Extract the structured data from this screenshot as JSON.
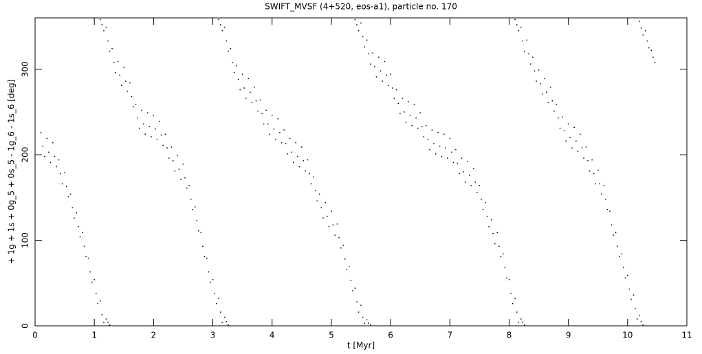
{
  "chart_data": {
    "type": "scatter",
    "title": "SWIFT_MVSF (4+520, eos-a1), particle no. 170",
    "xlabel": "t [Myr]",
    "ylabel": "+ 1g + 1s + 0g_5 + 0s_5 - 1g_6 - 1s_6 [deg]",
    "color": "#000000",
    "xlim": [
      0,
      11
    ],
    "ylim": [
      0,
      360
    ],
    "xticks": [
      0,
      1,
      2,
      3,
      4,
      5,
      6,
      7,
      8,
      9,
      10,
      11
    ],
    "yticks": [
      0,
      100,
      200,
      300
    ],
    "x": [
      0.1,
      0.13,
      0.16,
      0.2,
      0.23,
      0.26,
      0.3,
      0.33,
      0.36,
      0.4,
      0.43,
      0.46,
      0.5,
      0.53,
      0.56,
      0.6,
      0.63,
      0.66,
      0.7,
      0.73,
      0.76,
      0.8,
      0.83,
      0.86,
      0.9,
      0.93,
      0.96,
      1.0,
      1.03,
      1.06,
      1.1,
      1.13,
      1.16,
      1.2,
      1.23,
      1.26,
      1.1,
      1.13,
      1.16,
      1.2,
      1.23,
      1.26,
      1.3,
      1.33,
      1.36,
      1.4,
      1.43,
      1.46,
      1.5,
      1.53,
      1.56,
      1.6,
      1.63,
      1.66,
      1.7,
      1.73,
      1.76,
      1.8,
      1.83,
      1.86,
      1.9,
      1.93,
      1.96,
      2.0,
      2.03,
      2.06,
      2.1,
      2.13,
      2.16,
      2.2,
      2.23,
      2.26,
      2.3,
      2.33,
      2.36,
      2.4,
      2.43,
      2.46,
      2.5,
      2.53,
      2.56,
      2.6,
      2.63,
      2.66,
      2.7,
      2.73,
      2.76,
      2.8,
      2.83,
      2.86,
      2.9,
      2.93,
      2.96,
      3.0,
      3.03,
      3.06,
      3.1,
      3.13,
      3.16,
      3.2,
      3.23,
      3.26,
      3.1,
      3.13,
      3.16,
      3.2,
      3.23,
      3.26,
      3.3,
      3.33,
      3.36,
      3.4,
      3.43,
      3.46,
      3.5,
      3.53,
      3.56,
      3.6,
      3.63,
      3.66,
      3.7,
      3.73,
      3.76,
      3.8,
      3.83,
      3.86,
      3.9,
      3.93,
      3.96,
      4.0,
      4.03,
      4.06,
      4.1,
      4.13,
      4.16,
      4.2,
      4.23,
      4.26,
      4.3,
      4.33,
      4.36,
      4.4,
      4.43,
      4.46,
      4.5,
      4.53,
      4.56,
      4.6,
      4.63,
      4.66,
      4.7,
      4.73,
      4.76,
      4.8,
      4.83,
      4.86,
      4.9,
      4.93,
      4.96,
      5.0,
      5.03,
      5.06,
      5.1,
      5.13,
      5.16,
      5.2,
      5.23,
      5.26,
      5.3,
      5.33,
      5.36,
      5.4,
      5.43,
      5.46,
      5.5,
      5.53,
      5.56,
      5.6,
      5.63,
      5.66,
      5.4,
      5.43,
      5.46,
      5.5,
      5.53,
      5.56,
      5.6,
      5.63,
      5.66,
      5.7,
      5.73,
      5.76,
      5.8,
      5.83,
      5.86,
      5.9,
      5.93,
      5.96,
      6.0,
      6.03,
      6.06,
      6.1,
      6.13,
      6.16,
      6.2,
      6.23,
      6.26,
      6.3,
      6.33,
      6.36,
      6.4,
      6.43,
      6.46,
      6.5,
      6.53,
      6.56,
      6.6,
      6.63,
      6.66,
      6.7,
      6.73,
      6.76,
      6.8,
      6.83,
      6.86,
      6.9,
      6.93,
      6.96,
      7.0,
      7.03,
      7.06,
      7.1,
      7.13,
      7.16,
      7.2,
      7.23,
      7.26,
      7.3,
      7.33,
      7.36,
      7.4,
      7.43,
      7.46,
      7.5,
      7.53,
      7.56,
      7.6,
      7.63,
      7.66,
      7.7,
      7.73,
      7.76,
      7.8,
      7.83,
      7.86,
      7.9,
      7.93,
      7.96,
      8.0,
      8.03,
      8.06,
      8.1,
      8.13,
      8.16,
      8.2,
      8.23,
      8.26,
      8.1,
      8.13,
      8.16,
      8.2,
      8.23,
      8.26,
      8.3,
      8.33,
      8.36,
      8.4,
      8.43,
      8.46,
      8.5,
      8.53,
      8.56,
      8.6,
      8.63,
      8.66,
      8.7,
      8.73,
      8.76,
      8.8,
      8.83,
      8.86,
      8.9,
      8.93,
      8.96,
      9.0,
      9.03,
      9.06,
      9.1,
      9.13,
      9.16,
      9.2,
      9.23,
      9.26,
      9.3,
      9.33,
      9.36,
      9.4,
      9.43,
      9.46,
      9.5,
      9.53,
      9.56,
      9.6,
      9.63,
      9.66,
      9.7,
      9.73,
      9.76,
      9.8,
      9.83,
      9.86,
      9.9,
      9.93,
      9.96,
      10.0,
      10.03,
      10.06,
      10.1,
      10.13,
      10.16,
      10.2,
      10.23,
      10.26,
      10.2,
      10.23,
      10.26,
      10.3,
      10.33,
      10.36,
      10.4,
      10.43,
      10.46
    ],
    "values": [
      226,
      210,
      198,
      219,
      203,
      191,
      214,
      198,
      186,
      194,
      178,
      166,
      179,
      163,
      151,
      154,
      138,
      126,
      132,
      116,
      104,
      109,
      93,
      81,
      79,
      63,
      51,
      54,
      38,
      26,
      29,
      13,
      4,
      8,
      4,
      1,
      358,
      352,
      345,
      349,
      333,
      321,
      324,
      308,
      296,
      309,
      293,
      281,
      302,
      286,
      274,
      284,
      268,
      256,
      259,
      243,
      231,
      252,
      236,
      224,
      249,
      233,
      221,
      246,
      230,
      218,
      239,
      223,
      211,
      224,
      208,
      196,
      209,
      193,
      181,
      199,
      183,
      171,
      189,
      173,
      161,
      164,
      148,
      136,
      139,
      123,
      111,
      109,
      93,
      81,
      79,
      63,
      51,
      54,
      38,
      26,
      32,
      16,
      4,
      10,
      5,
      1,
      358,
      352,
      345,
      349,
      333,
      321,
      324,
      308,
      296,
      304,
      288,
      276,
      294,
      278,
      266,
      289,
      273,
      261,
      279,
      263,
      251,
      264,
      248,
      236,
      252,
      236,
      224,
      246,
      230,
      218,
      242,
      226,
      214,
      229,
      213,
      201,
      219,
      203,
      191,
      214,
      198,
      186,
      209,
      193,
      181,
      194,
      178,
      166,
      174,
      158,
      146,
      154,
      138,
      126,
      144,
      128,
      116,
      134,
      118,
      106,
      119,
      103,
      91,
      94,
      78,
      66,
      69,
      53,
      41,
      44,
      28,
      16,
      24,
      10,
      3,
      7,
      3,
      1,
      358,
      352,
      345,
      354,
      338,
      326,
      334,
      318,
      306,
      319,
      303,
      291,
      314,
      298,
      286,
      309,
      293,
      281,
      294,
      278,
      266,
      276,
      260,
      248,
      266,
      250,
      238,
      262,
      246,
      234,
      259,
      243,
      231,
      249,
      233,
      221,
      234,
      218,
      206,
      229,
      213,
      201,
      226,
      210,
      198,
      224,
      208,
      196,
      219,
      203,
      191,
      206,
      190,
      178,
      196,
      180,
      168,
      192,
      176,
      164,
      184,
      168,
      156,
      164,
      148,
      136,
      144,
      128,
      116,
      124,
      108,
      96,
      109,
      93,
      81,
      84,
      68,
      56,
      54,
      38,
      26,
      32,
      16,
      4,
      8,
      4,
      1,
      358,
      352,
      345,
      349,
      333,
      321,
      334,
      318,
      306,
      314,
      298,
      286,
      299,
      283,
      271,
      289,
      273,
      261,
      279,
      263,
      251,
      259,
      243,
      231,
      244,
      228,
      216,
      236,
      220,
      208,
      232,
      216,
      204,
      224,
      208,
      196,
      209,
      193,
      181,
      194,
      178,
      166,
      182,
      166,
      154,
      164,
      148,
      136,
      134,
      118,
      106,
      109,
      93,
      81,
      84,
      68,
      56,
      59,
      43,
      31,
      36,
      20,
      8,
      12,
      5,
      1,
      356,
      348,
      340,
      345,
      333,
      325,
      322,
      314,
      308
    ]
  }
}
